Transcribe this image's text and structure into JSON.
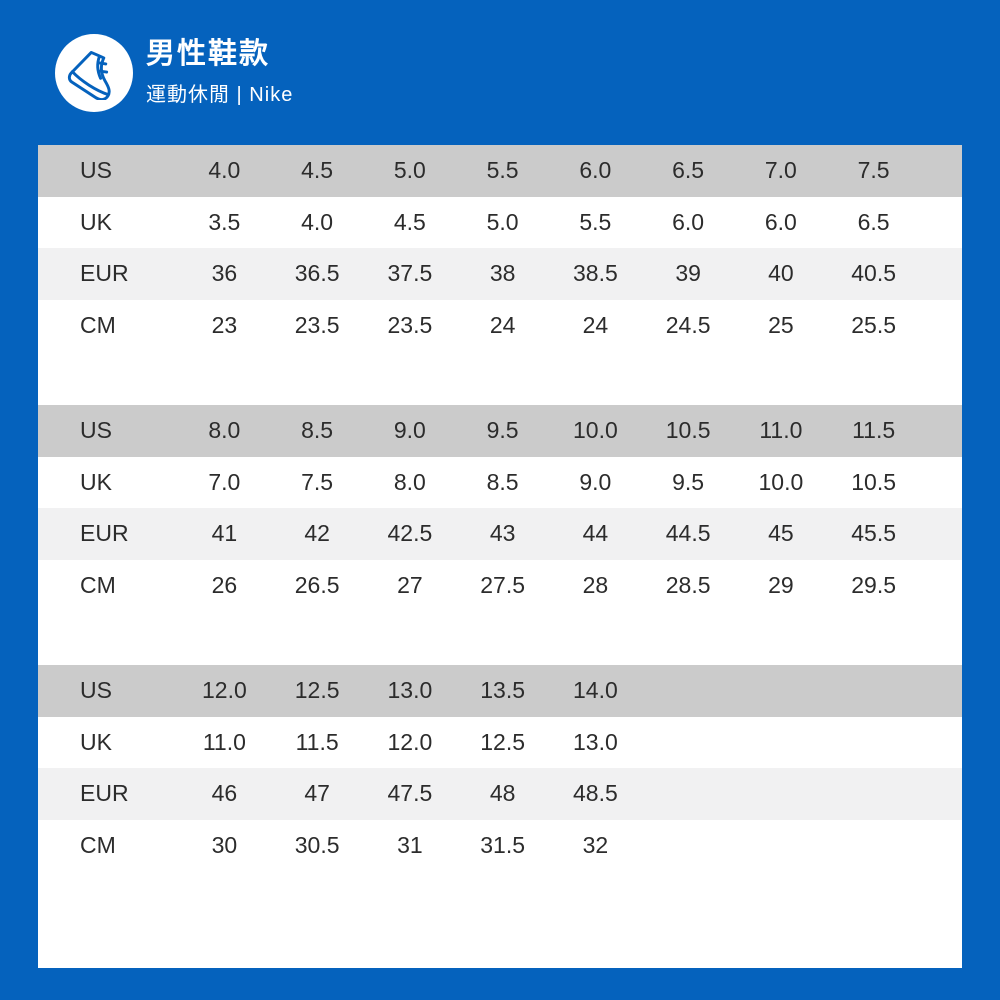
{
  "header": {
    "title": "男性鞋款",
    "subtitle": "運動休閒 | Nike",
    "logo_icon": "sneaker-icon"
  },
  "colors": {
    "background_blue": "#0562bd",
    "panel_white": "#ffffff",
    "header_row_gray": "#cbcbcb",
    "alt_row_gray": "#f1f1f2",
    "text_dark": "#2c2c2c",
    "header_text_white": "#ffffff"
  },
  "size_chart": {
    "columns_per_table": 8,
    "tables": [
      {
        "rows": [
          {
            "label": "US",
            "values": [
              "4.0",
              "4.5",
              "5.0",
              "5.5",
              "6.0",
              "6.5",
              "7.0",
              "7.5"
            ]
          },
          {
            "label": "UK",
            "values": [
              "3.5",
              "4.0",
              "4.5",
              "5.0",
              "5.5",
              "6.0",
              "6.0",
              "6.5"
            ]
          },
          {
            "label": "EUR",
            "values": [
              "36",
              "36.5",
              "37.5",
              "38",
              "38.5",
              "39",
              "40",
              "40.5"
            ]
          },
          {
            "label": "CM",
            "values": [
              "23",
              "23.5",
              "23.5",
              "24",
              "24",
              "24.5",
              "25",
              "25.5"
            ]
          }
        ]
      },
      {
        "rows": [
          {
            "label": "US",
            "values": [
              "8.0",
              "8.5",
              "9.0",
              "9.5",
              "10.0",
              "10.5",
              "11.0",
              "11.5"
            ]
          },
          {
            "label": "UK",
            "values": [
              "7.0",
              "7.5",
              "8.0",
              "8.5",
              "9.0",
              "9.5",
              "10.0",
              "10.5"
            ]
          },
          {
            "label": "EUR",
            "values": [
              "41",
              "42",
              "42.5",
              "43",
              "44",
              "44.5",
              "45",
              "45.5"
            ]
          },
          {
            "label": "CM",
            "values": [
              "26",
              "26.5",
              "27",
              "27.5",
              "28",
              "28.5",
              "29",
              "29.5"
            ]
          }
        ]
      },
      {
        "rows": [
          {
            "label": "US",
            "values": [
              "12.0",
              "12.5",
              "13.0",
              "13.5",
              "14.0"
            ]
          },
          {
            "label": "UK",
            "values": [
              "11.0",
              "11.5",
              "12.0",
              "12.5",
              "13.0"
            ]
          },
          {
            "label": "EUR",
            "values": [
              "46",
              "47",
              "47.5",
              "48",
              "48.5"
            ]
          },
          {
            "label": "CM",
            "values": [
              "30",
              "30.5",
              "31",
              "31.5",
              "32"
            ]
          }
        ]
      }
    ]
  }
}
